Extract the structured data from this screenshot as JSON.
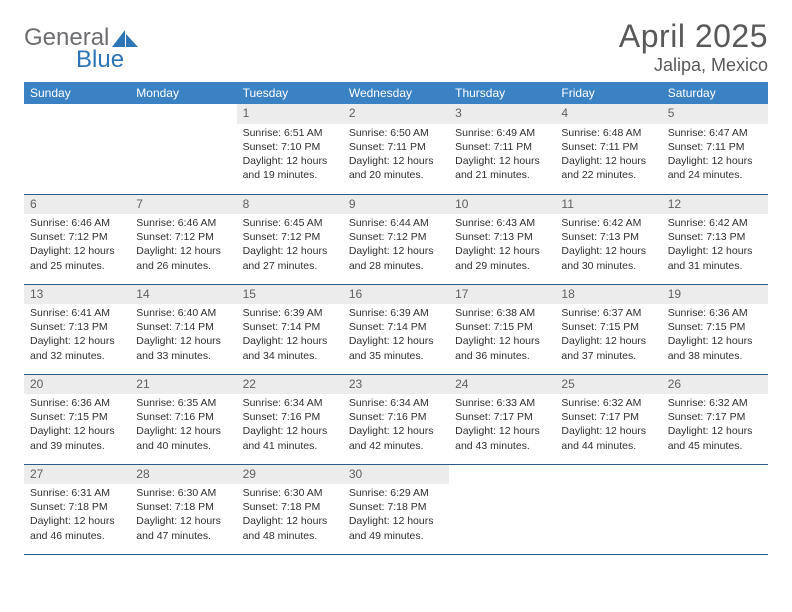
{
  "logo": {
    "word1": "General",
    "word2": "Blue",
    "iconColor": "#2e75b6",
    "textGray": "#6d6e71"
  },
  "title": "April 2025",
  "location": "Jalipa, Mexico",
  "style": {
    "headerBg": "#3a82c4",
    "headerText": "#ffffff",
    "dayNumBg": "#ececec",
    "dayNumText": "#606060",
    "bodyText": "#303030",
    "rowBorder": "#2e5b8a",
    "titleColor": "#595959",
    "headerFontSize": 12,
    "dayNumFontSize": 12,
    "bodyFontSize": 10.5,
    "titleFontSize": 32,
    "locationFontSize": 18
  },
  "weekdays": [
    "Sunday",
    "Monday",
    "Tuesday",
    "Wednesday",
    "Thursday",
    "Friday",
    "Saturday"
  ],
  "startWeekday": 2,
  "daysInMonth": 30,
  "days": {
    "1": {
      "sunrise": "6:51 AM",
      "sunset": "7:10 PM",
      "daylight": "12 hours and 19 minutes."
    },
    "2": {
      "sunrise": "6:50 AM",
      "sunset": "7:11 PM",
      "daylight": "12 hours and 20 minutes."
    },
    "3": {
      "sunrise": "6:49 AM",
      "sunset": "7:11 PM",
      "daylight": "12 hours and 21 minutes."
    },
    "4": {
      "sunrise": "6:48 AM",
      "sunset": "7:11 PM",
      "daylight": "12 hours and 22 minutes."
    },
    "5": {
      "sunrise": "6:47 AM",
      "sunset": "7:11 PM",
      "daylight": "12 hours and 24 minutes."
    },
    "6": {
      "sunrise": "6:46 AM",
      "sunset": "7:12 PM",
      "daylight": "12 hours and 25 minutes."
    },
    "7": {
      "sunrise": "6:46 AM",
      "sunset": "7:12 PM",
      "daylight": "12 hours and 26 minutes."
    },
    "8": {
      "sunrise": "6:45 AM",
      "sunset": "7:12 PM",
      "daylight": "12 hours and 27 minutes."
    },
    "9": {
      "sunrise": "6:44 AM",
      "sunset": "7:12 PM",
      "daylight": "12 hours and 28 minutes."
    },
    "10": {
      "sunrise": "6:43 AM",
      "sunset": "7:13 PM",
      "daylight": "12 hours and 29 minutes."
    },
    "11": {
      "sunrise": "6:42 AM",
      "sunset": "7:13 PM",
      "daylight": "12 hours and 30 minutes."
    },
    "12": {
      "sunrise": "6:42 AM",
      "sunset": "7:13 PM",
      "daylight": "12 hours and 31 minutes."
    },
    "13": {
      "sunrise": "6:41 AM",
      "sunset": "7:13 PM",
      "daylight": "12 hours and 32 minutes."
    },
    "14": {
      "sunrise": "6:40 AM",
      "sunset": "7:14 PM",
      "daylight": "12 hours and 33 minutes."
    },
    "15": {
      "sunrise": "6:39 AM",
      "sunset": "7:14 PM",
      "daylight": "12 hours and 34 minutes."
    },
    "16": {
      "sunrise": "6:39 AM",
      "sunset": "7:14 PM",
      "daylight": "12 hours and 35 minutes."
    },
    "17": {
      "sunrise": "6:38 AM",
      "sunset": "7:15 PM",
      "daylight": "12 hours and 36 minutes."
    },
    "18": {
      "sunrise": "6:37 AM",
      "sunset": "7:15 PM",
      "daylight": "12 hours and 37 minutes."
    },
    "19": {
      "sunrise": "6:36 AM",
      "sunset": "7:15 PM",
      "daylight": "12 hours and 38 minutes."
    },
    "20": {
      "sunrise": "6:36 AM",
      "sunset": "7:15 PM",
      "daylight": "12 hours and 39 minutes."
    },
    "21": {
      "sunrise": "6:35 AM",
      "sunset": "7:16 PM",
      "daylight": "12 hours and 40 minutes."
    },
    "22": {
      "sunrise": "6:34 AM",
      "sunset": "7:16 PM",
      "daylight": "12 hours and 41 minutes."
    },
    "23": {
      "sunrise": "6:34 AM",
      "sunset": "7:16 PM",
      "daylight": "12 hours and 42 minutes."
    },
    "24": {
      "sunrise": "6:33 AM",
      "sunset": "7:17 PM",
      "daylight": "12 hours and 43 minutes."
    },
    "25": {
      "sunrise": "6:32 AM",
      "sunset": "7:17 PM",
      "daylight": "12 hours and 44 minutes."
    },
    "26": {
      "sunrise": "6:32 AM",
      "sunset": "7:17 PM",
      "daylight": "12 hours and 45 minutes."
    },
    "27": {
      "sunrise": "6:31 AM",
      "sunset": "7:18 PM",
      "daylight": "12 hours and 46 minutes."
    },
    "28": {
      "sunrise": "6:30 AM",
      "sunset": "7:18 PM",
      "daylight": "12 hours and 47 minutes."
    },
    "29": {
      "sunrise": "6:30 AM",
      "sunset": "7:18 PM",
      "daylight": "12 hours and 48 minutes."
    },
    "30": {
      "sunrise": "6:29 AM",
      "sunset": "7:18 PM",
      "daylight": "12 hours and 49 minutes."
    }
  },
  "labels": {
    "sunrise": "Sunrise:",
    "sunset": "Sunset:",
    "daylight": "Daylight:"
  }
}
